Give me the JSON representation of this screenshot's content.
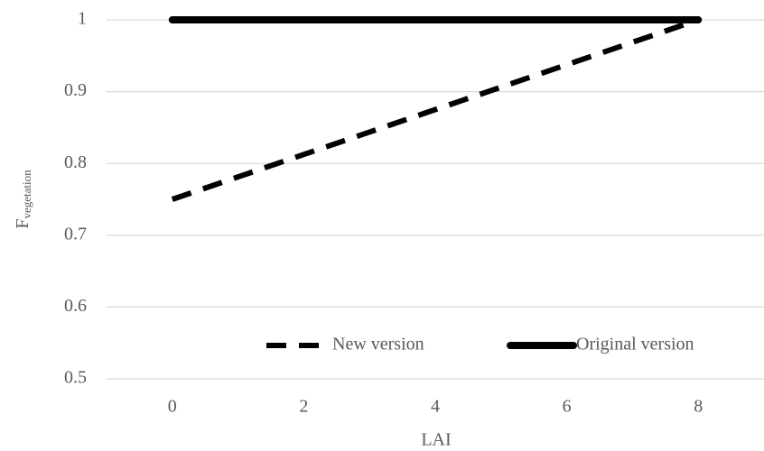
{
  "chart_data": {
    "type": "line",
    "xlabel": "LAI",
    "ylabel": "F",
    "ylabel_subscript": "vegetation",
    "xlim": [
      -1,
      9
    ],
    "xticks": [
      0,
      2,
      4,
      6,
      8
    ],
    "ylim": [
      0.5,
      1
    ],
    "yticks": [
      0.5,
      0.6,
      0.7,
      0.8,
      0.9,
      1
    ],
    "grid": true,
    "legend": "bottom-right",
    "series": [
      {
        "name": "New version",
        "color": "#000000",
        "linestyle": "dashed",
        "x": [
          0,
          8
        ],
        "values": [
          0.75,
          1
        ]
      },
      {
        "name": "Original version",
        "color": "#000000",
        "linestyle": "solid",
        "x": [
          0,
          8
        ],
        "values": [
          1,
          1
        ]
      }
    ]
  }
}
